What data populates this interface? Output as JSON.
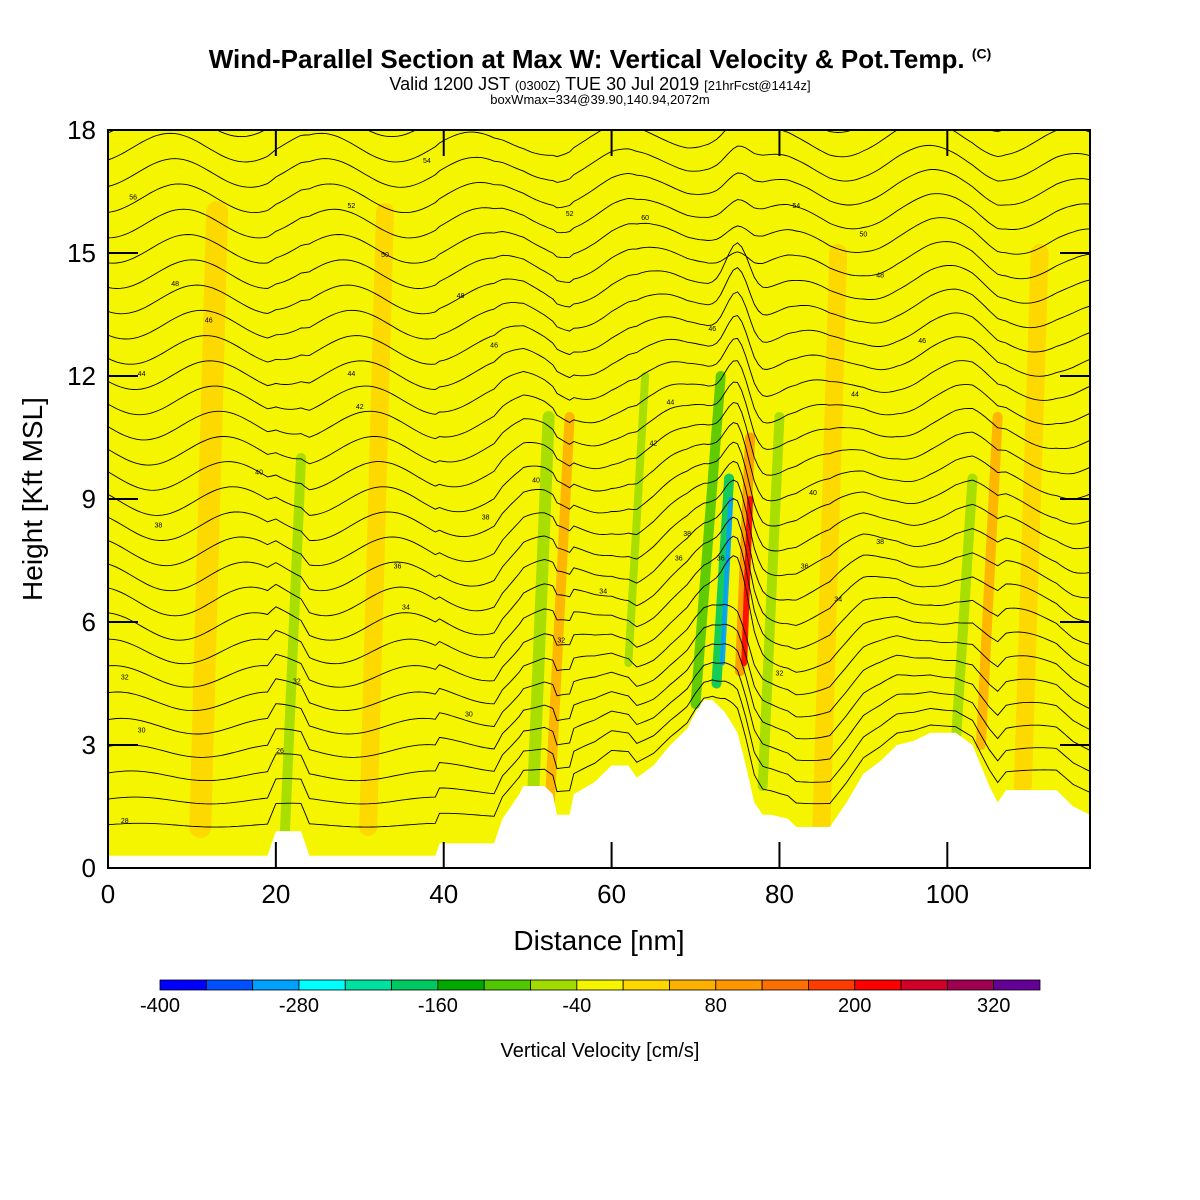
{
  "title": {
    "main": "Wind-Parallel Section at Max W: Vertical Velocity & Pot.Temp.",
    "copyright": "(C)",
    "valid_prefix": "Valid 1200 JST",
    "valid_utc": "(0300Z)",
    "valid_date": "TUE 30 Jul 2019",
    "forecast": "[21hrFcst@1414z]",
    "boxwmax": "boxWmax=334@39.90,140.94,2072m"
  },
  "colors": {
    "background_fill": "#f5f500",
    "terrain": "#ffffff",
    "contour": "#000000"
  },
  "chart_data": {
    "type": "heatmap",
    "xlabel": "Distance [nm]",
    "ylabel": "Height [Kft MSL]",
    "xlim": [
      0,
      117
    ],
    "ylim": [
      0,
      18
    ],
    "x_ticks": [
      0,
      20,
      40,
      60,
      80,
      100
    ],
    "y_ticks": [
      0,
      3,
      6,
      9,
      12,
      15,
      18
    ],
    "colorbar": {
      "title": "Vertical Velocity [cm/s]",
      "tick_labels": [
        "-400",
        "-280",
        "-160",
        "-40",
        "80",
        "200",
        "320"
      ],
      "range": [
        -400,
        360
      ],
      "colors": [
        "#0000ff",
        "#0050ff",
        "#00a0ff",
        "#00ffff",
        "#00e0a0",
        "#00c860",
        "#00a800",
        "#50c800",
        "#a0dc00",
        "#f5f500",
        "#ffd700",
        "#ffb000",
        "#ff9600",
        "#ff6e00",
        "#ff3c00",
        "#ff0000",
        "#d00028",
        "#a00050",
        "#640096"
      ]
    },
    "terrain_profile": [
      [
        0,
        0.3
      ],
      [
        19,
        0.3
      ],
      [
        19.5,
        0.6
      ],
      [
        20,
        0.9
      ],
      [
        23,
        0.9
      ],
      [
        23.5,
        0.6
      ],
      [
        24,
        0.3
      ],
      [
        39,
        0.3
      ],
      [
        39.5,
        0.6
      ],
      [
        46,
        0.6
      ],
      [
        46.5,
        0.9
      ],
      [
        47,
        1.2
      ],
      [
        48,
        1.5
      ],
      [
        49,
        1.8
      ],
      [
        49.5,
        2.0
      ],
      [
        52,
        2.0
      ],
      [
        53,
        1.8
      ],
      [
        53.5,
        1.3
      ],
      [
        55,
        1.3
      ],
      [
        55.5,
        1.8
      ],
      [
        58,
        2.1
      ],
      [
        60,
        2.5
      ],
      [
        62,
        2.5
      ],
      [
        63,
        2.2
      ],
      [
        65,
        2.5
      ],
      [
        67,
        3.0
      ],
      [
        69,
        3.4
      ],
      [
        70,
        3.8
      ],
      [
        71,
        4.1
      ],
      [
        72,
        4.1
      ],
      [
        73.5,
        3.8
      ],
      [
        75,
        3.3
      ],
      [
        76,
        2.5
      ],
      [
        77,
        1.6
      ],
      [
        78,
        1.3
      ],
      [
        79,
        1.3
      ],
      [
        81,
        1.2
      ],
      [
        82,
        1.0
      ],
      [
        86,
        1.0
      ],
      [
        88,
        1.6
      ],
      [
        90,
        2.3
      ],
      [
        92,
        2.6
      ],
      [
        94,
        3.0
      ],
      [
        96,
        3.1
      ],
      [
        98,
        3.3
      ],
      [
        101,
        3.3
      ],
      [
        103,
        3.0
      ],
      [
        104,
        2.5
      ],
      [
        105,
        2.0
      ],
      [
        106,
        1.6
      ],
      [
        107,
        1.9
      ],
      [
        113,
        1.9
      ],
      [
        115,
        1.5
      ],
      [
        117,
        1.3
      ]
    ],
    "theta_isentropes_label_positions": [
      {
        "text": "26",
        "x": 20.5,
        "y": 2.8
      },
      {
        "text": "28",
        "x": 2,
        "y": 1.1
      },
      {
        "text": "30",
        "x": 4,
        "y": 3.3
      },
      {
        "text": "30",
        "x": 43,
        "y": 3.7
      },
      {
        "text": "32",
        "x": 2,
        "y": 4.6
      },
      {
        "text": "32",
        "x": 22.5,
        "y": 4.5
      },
      {
        "text": "32",
        "x": 54,
        "y": 5.5
      },
      {
        "text": "32",
        "x": 80,
        "y": 4.7
      },
      {
        "text": "34",
        "x": 35.5,
        "y": 6.3
      },
      {
        "text": "34",
        "x": 59,
        "y": 6.7
      },
      {
        "text": "34",
        "x": 87,
        "y": 6.5
      },
      {
        "text": "36",
        "x": 34.5,
        "y": 7.3
      },
      {
        "text": "36",
        "x": 68,
        "y": 7.5
      },
      {
        "text": "36",
        "x": 73,
        "y": 7.5
      },
      {
        "text": "36",
        "x": 83,
        "y": 7.3
      },
      {
        "text": "38",
        "x": 6,
        "y": 8.3
      },
      {
        "text": "38",
        "x": 45,
        "y": 8.5
      },
      {
        "text": "38",
        "x": 69,
        "y": 8.1
      },
      {
        "text": "38",
        "x": 92,
        "y": 7.9
      },
      {
        "text": "40",
        "x": 18,
        "y": 9.6
      },
      {
        "text": "40",
        "x": 51,
        "y": 9.4
      },
      {
        "text": "40",
        "x": 84,
        "y": 9.1
      },
      {
        "text": "42",
        "x": 30,
        "y": 11.2
      },
      {
        "text": "42",
        "x": 65,
        "y": 10.3
      },
      {
        "text": "44",
        "x": 29,
        "y": 12.0
      },
      {
        "text": "44",
        "x": 4,
        "y": 12.0
      },
      {
        "text": "44",
        "x": 67,
        "y": 11.3
      },
      {
        "text": "44",
        "x": 89,
        "y": 11.5
      },
      {
        "text": "46",
        "x": 12,
        "y": 13.3
      },
      {
        "text": "46",
        "x": 46,
        "y": 12.7
      },
      {
        "text": "46",
        "x": 72,
        "y": 13.1
      },
      {
        "text": "46",
        "x": 97,
        "y": 12.8
      },
      {
        "text": "48",
        "x": 8,
        "y": 14.2
      },
      {
        "text": "48",
        "x": 42,
        "y": 13.9
      },
      {
        "text": "48",
        "x": 92,
        "y": 14.4
      },
      {
        "text": "50",
        "x": 33,
        "y": 14.9
      },
      {
        "text": "50",
        "x": 90,
        "y": 15.4
      },
      {
        "text": "52",
        "x": 29,
        "y": 16.1
      },
      {
        "text": "52",
        "x": 55,
        "y": 15.9
      },
      {
        "text": "54",
        "x": 38,
        "y": 17.2
      },
      {
        "text": "54",
        "x": 82,
        "y": 16.1
      },
      {
        "text": "56",
        "x": 3,
        "y": 16.3
      },
      {
        "text": "60",
        "x": 64,
        "y": 15.8
      }
    ]
  }
}
